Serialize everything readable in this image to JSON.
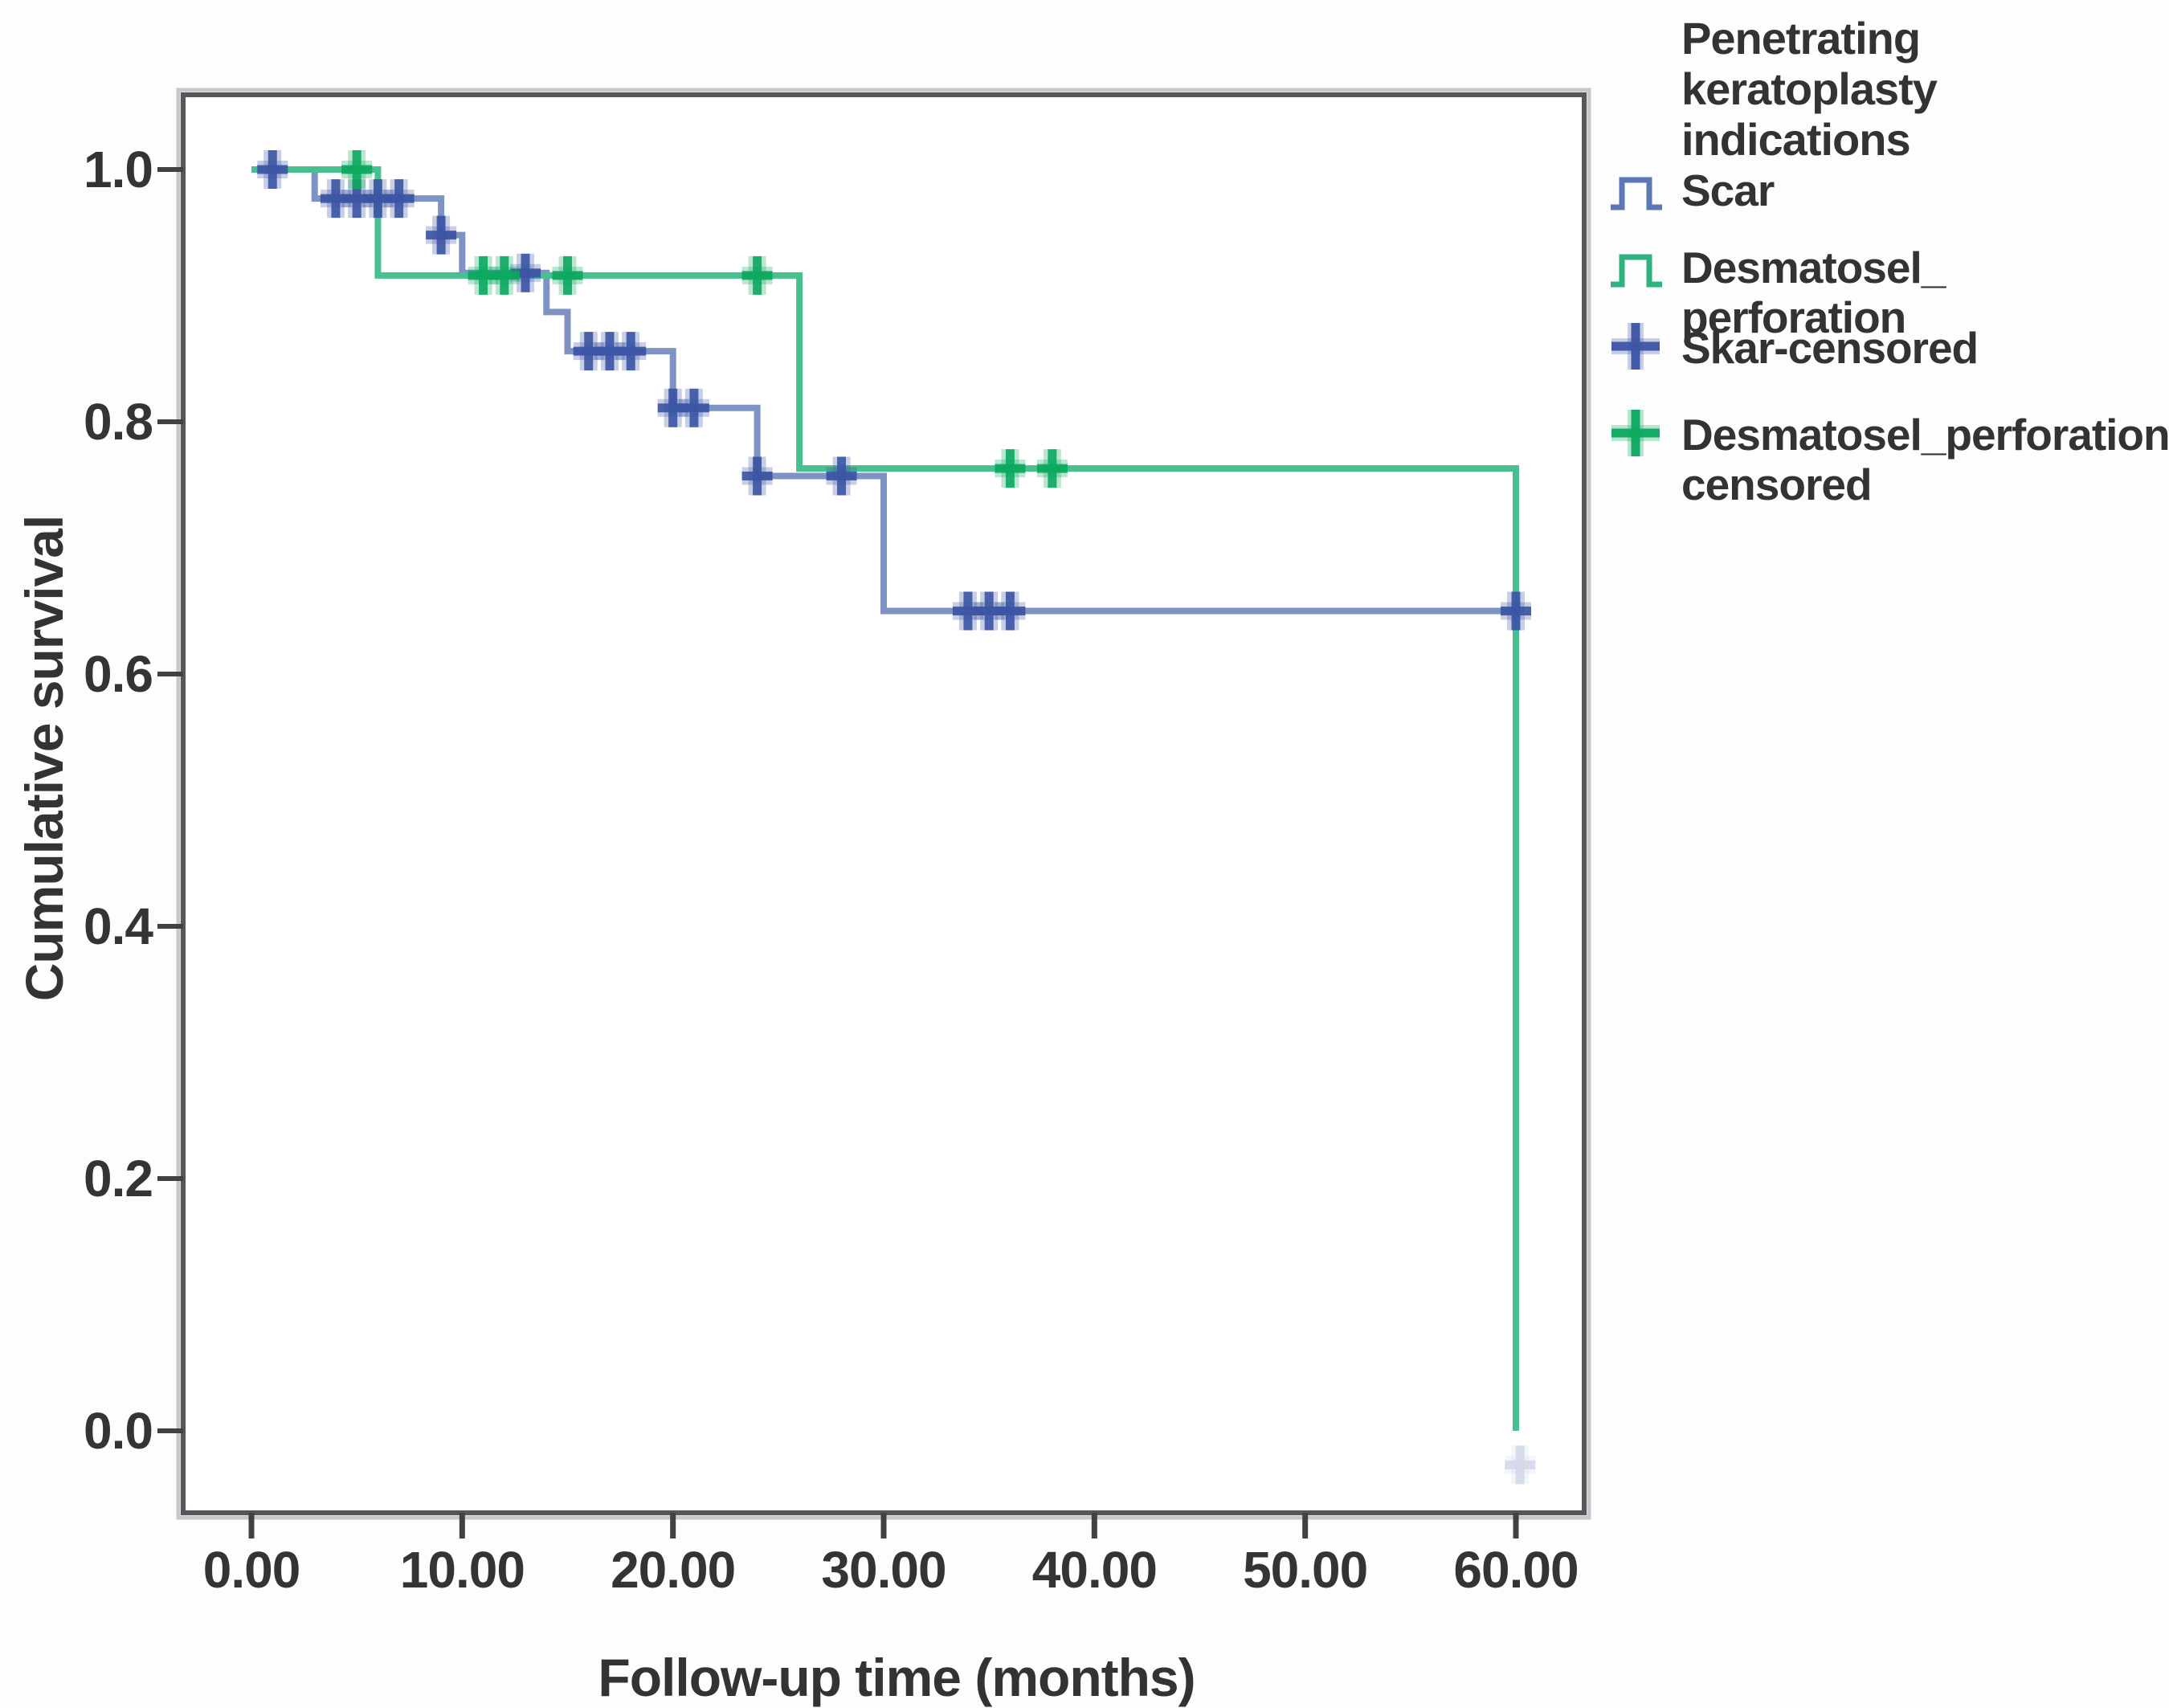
{
  "figure": {
    "legend": {
      "title": "Penetrating keratoplasty\nindications",
      "entries": [
        {
          "label": "Scar",
          "glyph": "step-line",
          "color": "#5c77b5"
        },
        {
          "label": "Desmatosel_ perforation",
          "glyph": "step-line",
          "color": "#2eb37e"
        },
        {
          "label": "Skar-censored",
          "glyph": "plus",
          "color": "#3c55a5"
        },
        {
          "label": "Desmatosel_perforation-\ncensored",
          "glyph": "plus",
          "color": "#0ca95f"
        }
      ]
    }
  },
  "chart_data": {
    "type": "line",
    "subtype": "kaplan-meier-step-curves",
    "title": "",
    "xlabel": "Follow-up time (months)",
    "ylabel": "Cumulative survival",
    "xlim": [
      -3.2,
      63.2
    ],
    "ylim": [
      -0.065,
      1.06
    ],
    "grid": false,
    "legend_position": "right-top",
    "x_ticks": [
      {
        "value": 0,
        "label": "0.00"
      },
      {
        "value": 10,
        "label": "10.00"
      },
      {
        "value": 20,
        "label": "20.00"
      },
      {
        "value": 30,
        "label": "30.00"
      },
      {
        "value": 40,
        "label": "40.00"
      },
      {
        "value": 50,
        "label": "50.00"
      },
      {
        "value": 60,
        "label": "60.00"
      }
    ],
    "y_ticks": [
      {
        "value": 1.0,
        "label": "1.0"
      },
      {
        "value": 0.8,
        "label": "0.8"
      },
      {
        "value": 0.6,
        "label": "0.6"
      },
      {
        "value": 0.4,
        "label": "0.4"
      },
      {
        "value": 0.2,
        "label": "0.2"
      },
      {
        "value": 0.0,
        "label": "0.0"
      }
    ],
    "series": [
      {
        "name": "Scar",
        "line_color": "#7e93c3",
        "censor_color": "#3c55a5",
        "steps": [
          {
            "t": 0,
            "s": 1.0
          },
          {
            "t": 3,
            "s": 0.977
          },
          {
            "t": 9,
            "s": 0.948
          },
          {
            "t": 10,
            "s": 0.918
          },
          {
            "t": 14,
            "s": 0.887
          },
          {
            "t": 15,
            "s": 0.856
          },
          {
            "t": 20,
            "s": 0.811
          },
          {
            "t": 24,
            "s": 0.757
          },
          {
            "t": 30,
            "s": 0.65
          },
          {
            "t": 60,
            "s": 0.65
          }
        ],
        "censored": [
          {
            "t": 1,
            "s": 1.0
          },
          {
            "t": 4,
            "s": 0.977
          },
          {
            "t": 5,
            "s": 0.977
          },
          {
            "t": 6,
            "s": 0.977
          },
          {
            "t": 7,
            "s": 0.977
          },
          {
            "t": 9,
            "s": 0.948
          },
          {
            "t": 13,
            "s": 0.918
          },
          {
            "t": 16,
            "s": 0.856
          },
          {
            "t": 17,
            "s": 0.856
          },
          {
            "t": 18,
            "s": 0.856
          },
          {
            "t": 20,
            "s": 0.811
          },
          {
            "t": 21,
            "s": 0.811
          },
          {
            "t": 24,
            "s": 0.757
          },
          {
            "t": 28,
            "s": 0.757
          },
          {
            "t": 34,
            "s": 0.65
          },
          {
            "t": 35,
            "s": 0.65
          },
          {
            "t": 36,
            "s": 0.65
          },
          {
            "t": 60,
            "s": 0.65
          },
          {
            "t": 60.2,
            "s": -0.027,
            "faint": true
          }
        ]
      },
      {
        "name": "Desmatosel_ perforation",
        "line_color": "#48bf8e",
        "censor_color": "#0ca95f",
        "steps": [
          {
            "t": 0,
            "s": 1.0
          },
          {
            "t": 6,
            "s": 0.916
          },
          {
            "t": 26,
            "s": 0.763
          },
          {
            "t": 60,
            "s": 0.0
          }
        ],
        "censored": [
          {
            "t": 5,
            "s": 1.0
          },
          {
            "t": 11,
            "s": 0.916
          },
          {
            "t": 12,
            "s": 0.916
          },
          {
            "t": 15,
            "s": 0.916
          },
          {
            "t": 24,
            "s": 0.916
          },
          {
            "t": 36,
            "s": 0.763
          },
          {
            "t": 38,
            "s": 0.763
          }
        ]
      }
    ]
  }
}
